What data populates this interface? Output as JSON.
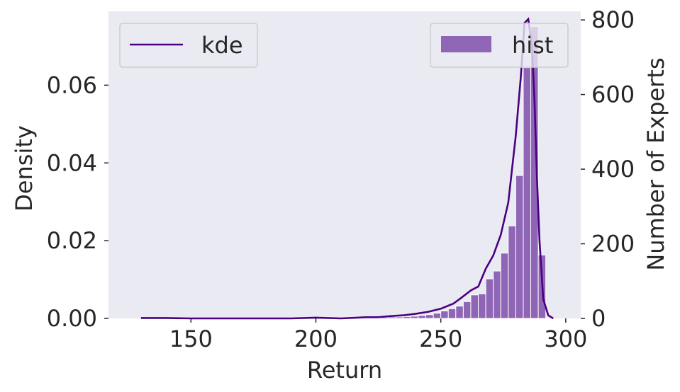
{
  "chart_data": {
    "type": "histogram",
    "x_axis": {
      "label": "Return",
      "range": [
        117,
        306
      ],
      "ticks": [
        150,
        200,
        250,
        300
      ]
    },
    "y_axis_left": {
      "label": "Density",
      "range": [
        0,
        0.079
      ],
      "ticks": [
        0.0,
        0.02,
        0.04,
        0.06
      ],
      "tick_labels": [
        "0.00",
        "0.02",
        "0.04",
        "0.06"
      ]
    },
    "y_axis_right": {
      "label": "Number of Experts",
      "range": [
        0,
        823
      ],
      "ticks": [
        0,
        200,
        400,
        600,
        800
      ],
      "tick_labels": [
        "0",
        "200",
        "400",
        "600",
        "800"
      ]
    },
    "grid": false,
    "background": "#eaeaf2",
    "series": [
      {
        "name": "hist",
        "kind": "bar",
        "axis": "right",
        "color": "#8f65b5",
        "bin_width": 3,
        "bins": [
          {
            "x0": 223,
            "count": 3
          },
          {
            "x0": 226,
            "count": 3
          },
          {
            "x0": 229,
            "count": 4
          },
          {
            "x0": 232,
            "count": 4
          },
          {
            "x0": 235,
            "count": 5
          },
          {
            "x0": 238,
            "count": 6
          },
          {
            "x0": 241,
            "count": 8
          },
          {
            "x0": 244,
            "count": 10
          },
          {
            "x0": 247,
            "count": 14
          },
          {
            "x0": 250,
            "count": 20
          },
          {
            "x0": 253,
            "count": 26
          },
          {
            "x0": 256,
            "count": 33
          },
          {
            "x0": 259,
            "count": 45
          },
          {
            "x0": 262,
            "count": 63
          },
          {
            "x0": 265,
            "count": 66
          },
          {
            "x0": 268,
            "count": 106
          },
          {
            "x0": 271,
            "count": 127
          },
          {
            "x0": 274,
            "count": 175
          },
          {
            "x0": 277,
            "count": 248
          },
          {
            "x0": 280,
            "count": 383
          },
          {
            "x0": 283,
            "count": 672
          },
          {
            "x0": 286,
            "count": 782
          },
          {
            "x0": 289,
            "count": 170
          }
        ]
      },
      {
        "name": "kde",
        "kind": "line",
        "axis": "left",
        "color": "#4b0082",
        "points": [
          [
            130,
            0.0001
          ],
          [
            140,
            0.0001
          ],
          [
            150,
            0.0
          ],
          [
            160,
            0.0
          ],
          [
            170,
            0.0
          ],
          [
            180,
            0.0
          ],
          [
            190,
            0.0
          ],
          [
            200,
            0.0002
          ],
          [
            210,
            0.0
          ],
          [
            220,
            0.0003
          ],
          [
            225,
            0.0003
          ],
          [
            230,
            0.0006
          ],
          [
            235,
            0.0008
          ],
          [
            240,
            0.0012
          ],
          [
            245,
            0.0017
          ],
          [
            250,
            0.0025
          ],
          [
            255,
            0.0038
          ],
          [
            258,
            0.0052
          ],
          [
            262,
            0.0072
          ],
          [
            265,
            0.0082
          ],
          [
            268,
            0.0128
          ],
          [
            271,
            0.0162
          ],
          [
            274,
            0.0215
          ],
          [
            277,
            0.0298
          ],
          [
            280,
            0.047
          ],
          [
            282,
            0.062
          ],
          [
            283.5,
            0.076
          ],
          [
            285,
            0.077
          ],
          [
            286.5,
            0.07
          ],
          [
            287.5,
            0.056
          ],
          [
            288.5,
            0.036
          ],
          [
            289.5,
            0.02
          ],
          [
            291,
            0.005
          ],
          [
            293,
            0.0008
          ],
          [
            295,
            0.0
          ]
        ]
      }
    ],
    "legends": [
      {
        "placement": "top-left",
        "entries": [
          "kde"
        ]
      },
      {
        "placement": "top-right",
        "entries": [
          "hist"
        ]
      }
    ]
  }
}
